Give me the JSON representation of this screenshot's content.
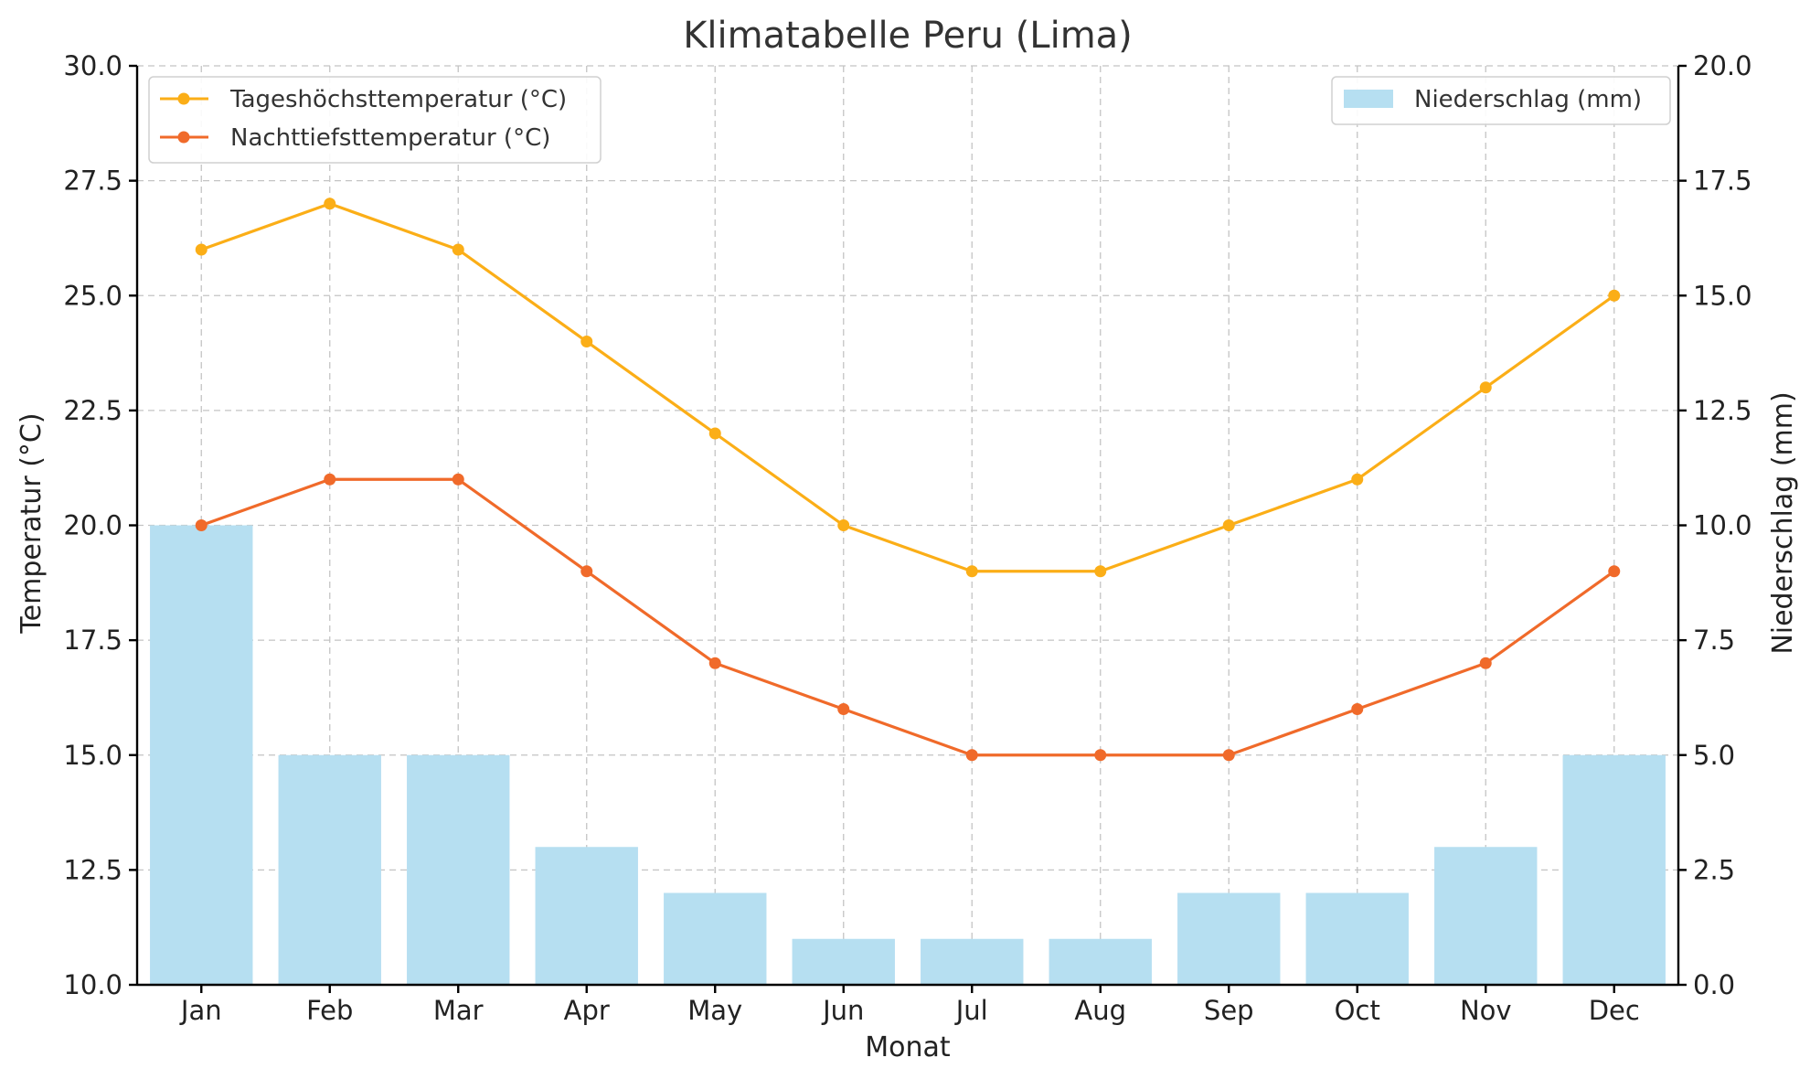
{
  "colors": {
    "high_temp": "#FBAE17",
    "low_temp": "#F06A2A",
    "precip": "#B6DFF1"
  },
  "chart_data": {
    "type": "bar",
    "title": "Klimatabelle Peru (Lima)",
    "xlabel": "Monat",
    "ylabel_left": "Temperatur (°C)",
    "ylabel_right": "Niederschlag (mm)",
    "categories": [
      "Jan",
      "Feb",
      "Mar",
      "Apr",
      "May",
      "Jun",
      "Jul",
      "Aug",
      "Sep",
      "Oct",
      "Nov",
      "Dec"
    ],
    "ylim_left": [
      10,
      30
    ],
    "ylim_right": [
      0,
      20
    ],
    "yticks_left": [
      "10.0",
      "12.5",
      "15.0",
      "17.5",
      "20.0",
      "22.5",
      "25.0",
      "27.5",
      "30.0"
    ],
    "yticks_right": [
      "0.0",
      "2.5",
      "5.0",
      "7.5",
      "10.0",
      "12.5",
      "15.0",
      "17.5",
      "20.0"
    ],
    "grid": true,
    "series": [
      {
        "name": "Tageshöchsttemperatur (°C)",
        "kind": "line",
        "axis": "left",
        "color": "#FBAE17",
        "values": [
          26,
          27,
          26,
          24,
          22,
          20,
          19,
          19,
          20,
          21,
          23,
          25
        ]
      },
      {
        "name": "Nachttiefsttemperatur (°C)",
        "kind": "line",
        "axis": "left",
        "color": "#F06A2A",
        "values": [
          20,
          21,
          21,
          19,
          17,
          16,
          15,
          15,
          15,
          16,
          17,
          19
        ]
      },
      {
        "name": "Niederschlag (mm)",
        "kind": "bar",
        "axis": "right",
        "color": "#B6DFF1",
        "values": [
          10,
          5,
          5,
          3,
          2,
          1,
          1,
          1,
          2,
          2,
          3,
          5
        ]
      }
    ],
    "legends": [
      {
        "placement": "top-left",
        "entries": [
          "Tageshöchsttemperatur (°C)",
          "Nachttiefsttemperatur (°C)"
        ]
      },
      {
        "placement": "top-right",
        "entries": [
          "Niederschlag (mm)"
        ]
      }
    ]
  }
}
